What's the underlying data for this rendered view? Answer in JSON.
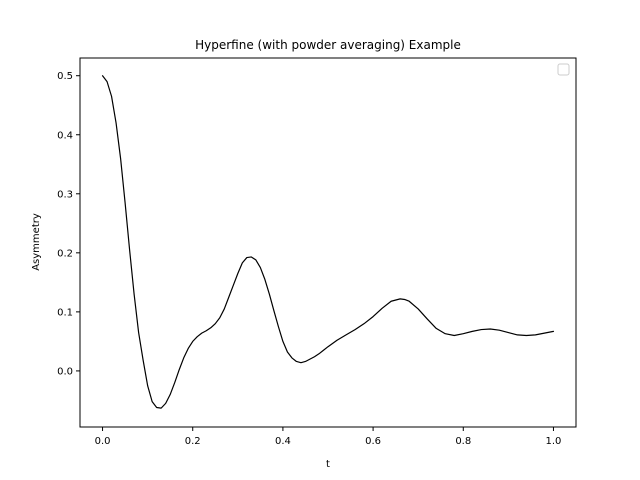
{
  "chart_data": {
    "type": "line",
    "title": "Hyperfine (with powder averaging) Example",
    "xlabel": "t",
    "ylabel": "Asymmetry",
    "xlim": [
      -0.05,
      1.05
    ],
    "ylim": [
      -0.095,
      0.53
    ],
    "xticks": [
      0.0,
      0.2,
      0.4,
      0.6,
      0.8,
      1.0
    ],
    "xtick_labels": [
      "0.0",
      "0.2",
      "0.4",
      "0.6",
      "0.8",
      "1.0"
    ],
    "yticks": [
      0.0,
      0.1,
      0.2,
      0.3,
      0.4,
      0.5
    ],
    "ytick_labels": [
      "0.0",
      "0.1",
      "0.2",
      "0.3",
      "0.4",
      "0.5"
    ],
    "grid": false,
    "legend": {
      "placement": "top-right",
      "entries": []
    },
    "series": [
      {
        "color": "#000000",
        "x": [
          0.0,
          0.01,
          0.02,
          0.03,
          0.04,
          0.05,
          0.06,
          0.07,
          0.08,
          0.09,
          0.1,
          0.11,
          0.12,
          0.13,
          0.14,
          0.15,
          0.16,
          0.17,
          0.18,
          0.19,
          0.2,
          0.21,
          0.22,
          0.23,
          0.24,
          0.25,
          0.26,
          0.27,
          0.28,
          0.29,
          0.3,
          0.31,
          0.32,
          0.33,
          0.34,
          0.35,
          0.36,
          0.37,
          0.38,
          0.39,
          0.4,
          0.41,
          0.42,
          0.43,
          0.44,
          0.45,
          0.46,
          0.47,
          0.48,
          0.49,
          0.5,
          0.52,
          0.54,
          0.56,
          0.58,
          0.6,
          0.62,
          0.64,
          0.66,
          0.67,
          0.68,
          0.7,
          0.72,
          0.74,
          0.76,
          0.78,
          0.8,
          0.82,
          0.84,
          0.86,
          0.88,
          0.9,
          0.92,
          0.94,
          0.96,
          0.98,
          1.0
        ],
        "y": [
          0.5,
          0.49,
          0.465,
          0.42,
          0.36,
          0.285,
          0.205,
          0.13,
          0.065,
          0.018,
          -0.025,
          -0.052,
          -0.062,
          -0.063,
          -0.055,
          -0.04,
          -0.02,
          0.002,
          0.022,
          0.038,
          0.05,
          0.058,
          0.064,
          0.068,
          0.073,
          0.08,
          0.09,
          0.105,
          0.125,
          0.145,
          0.165,
          0.183,
          0.192,
          0.193,
          0.188,
          0.175,
          0.155,
          0.13,
          0.102,
          0.075,
          0.05,
          0.032,
          0.022,
          0.016,
          0.014,
          0.016,
          0.02,
          0.024,
          0.029,
          0.035,
          0.041,
          0.052,
          0.061,
          0.07,
          0.08,
          0.092,
          0.106,
          0.118,
          0.122,
          0.121,
          0.118,
          0.105,
          0.088,
          0.072,
          0.063,
          0.06,
          0.063,
          0.067,
          0.07,
          0.071,
          0.069,
          0.065,
          0.061,
          0.06,
          0.061,
          0.064,
          0.067
        ]
      }
    ]
  }
}
